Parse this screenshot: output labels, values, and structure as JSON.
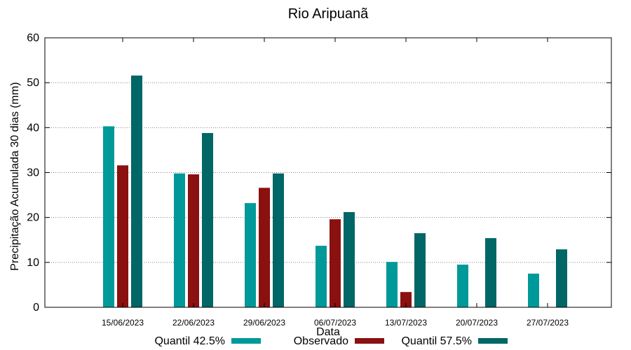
{
  "chart_data": {
    "type": "bar",
    "title": "Rio Aripuanã",
    "xlabel": "Data",
    "ylabel": "Precipitação Acumulada 30 dias (mm)",
    "ylim": [
      0,
      60
    ],
    "yticks": [
      0,
      10,
      20,
      30,
      40,
      50,
      60
    ],
    "grid": true,
    "legend_position": "bottom",
    "categories": [
      "15/06/2023",
      "22/06/2023",
      "29/06/2023",
      "06/07/2023",
      "13/07/2023",
      "20/07/2023",
      "27/07/2023"
    ],
    "series": [
      {
        "name": "Quantil 42.5%",
        "color": "#009999",
        "values": [
          40.3,
          29.8,
          23.2,
          13.7,
          10.1,
          9.5,
          7.5
        ]
      },
      {
        "name": "Observado",
        "color": "#8b1010",
        "values": [
          31.6,
          29.6,
          26.6,
          19.6,
          3.4,
          null,
          null
        ]
      },
      {
        "name": "Quantil 57.5%",
        "color": "#006666",
        "values": [
          51.6,
          38.8,
          29.8,
          21.2,
          16.5,
          15.4,
          12.9
        ]
      }
    ]
  }
}
